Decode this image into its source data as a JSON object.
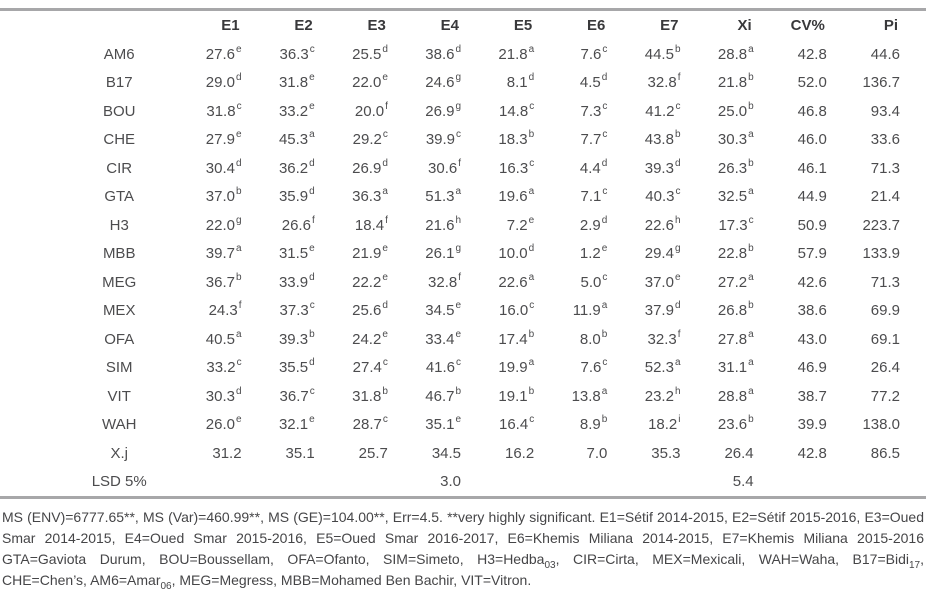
{
  "table": {
    "columns": [
      "",
      "E1",
      "E2",
      "E3",
      "E4",
      "E5",
      "E6",
      "E7",
      "Xi",
      "CV%",
      "Pi"
    ],
    "rows": [
      {
        "label": "AM6",
        "cells": [
          {
            "v": "27.6",
            "s": "e"
          },
          {
            "v": "36.3",
            "s": "c"
          },
          {
            "v": "25.5",
            "s": "d"
          },
          {
            "v": "38.6",
            "s": "d"
          },
          {
            "v": "21.8",
            "s": "a"
          },
          {
            "v": "7.6",
            "s": "c"
          },
          {
            "v": "44.5",
            "s": "b"
          },
          {
            "v": "28.8",
            "s": "a"
          },
          {
            "v": "42.8"
          },
          {
            "v": "44.6"
          }
        ]
      },
      {
        "label": "B17",
        "cells": [
          {
            "v": "29.0",
            "s": "d"
          },
          {
            "v": "31.8",
            "s": "e"
          },
          {
            "v": "22.0",
            "s": "e"
          },
          {
            "v": "24.6",
            "s": "g"
          },
          {
            "v": "8.1",
            "s": "d"
          },
          {
            "v": "4.5",
            "s": "d"
          },
          {
            "v": "32.8",
            "s": "f"
          },
          {
            "v": "21.8",
            "s": "b"
          },
          {
            "v": "52.0"
          },
          {
            "v": "136.7"
          }
        ]
      },
      {
        "label": "BOU",
        "cells": [
          {
            "v": "31.8",
            "s": "c"
          },
          {
            "v": "33.2",
            "s": "e"
          },
          {
            "v": "20.0",
            "s": "f"
          },
          {
            "v": "26.9",
            "s": "g"
          },
          {
            "v": "14.8",
            "s": "c"
          },
          {
            "v": "7.3",
            "s": "c"
          },
          {
            "v": "41.2",
            "s": "c"
          },
          {
            "v": "25.0",
            "s": "b"
          },
          {
            "v": "46.8"
          },
          {
            "v": "93.4"
          }
        ]
      },
      {
        "label": "CHE",
        "cells": [
          {
            "v": "27.9",
            "s": "e"
          },
          {
            "v": "45.3",
            "s": "a"
          },
          {
            "v": "29.2",
            "s": "c"
          },
          {
            "v": "39.9",
            "s": "c"
          },
          {
            "v": "18.3",
            "s": "b"
          },
          {
            "v": "7.7",
            "s": "c"
          },
          {
            "v": "43.8",
            "s": "b"
          },
          {
            "v": "30.3",
            "s": "a"
          },
          {
            "v": "46.0"
          },
          {
            "v": "33.6"
          }
        ]
      },
      {
        "label": "CIR",
        "cells": [
          {
            "v": "30.4",
            "s": "d"
          },
          {
            "v": "36.2",
            "s": "d"
          },
          {
            "v": "26.9",
            "s": "d"
          },
          {
            "v": "30.6",
            "s": "f"
          },
          {
            "v": "16.3",
            "s": "c"
          },
          {
            "v": "4.4",
            "s": "d"
          },
          {
            "v": "39.3",
            "s": "d"
          },
          {
            "v": "26.3",
            "s": "b"
          },
          {
            "v": "46.1"
          },
          {
            "v": "71.3"
          }
        ]
      },
      {
        "label": "GTA",
        "cells": [
          {
            "v": "37.0",
            "s": "b"
          },
          {
            "v": "35.9",
            "s": "d"
          },
          {
            "v": "36.3",
            "s": "a"
          },
          {
            "v": "51.3",
            "s": "a"
          },
          {
            "v": "19.6",
            "s": "a"
          },
          {
            "v": "7.1",
            "s": "c"
          },
          {
            "v": "40.3",
            "s": "c"
          },
          {
            "v": "32.5",
            "s": "a"
          },
          {
            "v": "44.9"
          },
          {
            "v": "21.4"
          }
        ]
      },
      {
        "label": "H3",
        "cells": [
          {
            "v": "22.0",
            "s": "g"
          },
          {
            "v": "26.6",
            "s": "f"
          },
          {
            "v": "18.4",
            "s": "f"
          },
          {
            "v": "21.6",
            "s": "h"
          },
          {
            "v": "7.2",
            "s": "e"
          },
          {
            "v": "2.9",
            "s": "d"
          },
          {
            "v": "22.6",
            "s": "h"
          },
          {
            "v": "17.3",
            "s": "c"
          },
          {
            "v": "50.9"
          },
          {
            "v": "223.7"
          }
        ]
      },
      {
        "label": "MBB",
        "cells": [
          {
            "v": "39.7",
            "s": "a"
          },
          {
            "v": "31.5",
            "s": "e"
          },
          {
            "v": "21.9",
            "s": "e"
          },
          {
            "v": "26.1",
            "s": "g"
          },
          {
            "v": "10.0",
            "s": "d"
          },
          {
            "v": "1.2",
            "s": "e"
          },
          {
            "v": "29.4",
            "s": "g"
          },
          {
            "v": "22.8",
            "s": "b"
          },
          {
            "v": "57.9"
          },
          {
            "v": "133.9"
          }
        ]
      },
      {
        "label": "MEG",
        "cells": [
          {
            "v": "36.7",
            "s": "b"
          },
          {
            "v": "33.9",
            "s": "d"
          },
          {
            "v": "22.2",
            "s": "e"
          },
          {
            "v": "32.8",
            "s": "f"
          },
          {
            "v": "22.6",
            "s": "a"
          },
          {
            "v": "5.0",
            "s": "c"
          },
          {
            "v": "37.0",
            "s": "e"
          },
          {
            "v": "27.2",
            "s": "a"
          },
          {
            "v": "42.6"
          },
          {
            "v": "71.3"
          }
        ]
      },
      {
        "label": "MEX",
        "cells": [
          {
            "v": "24.3",
            "s": "f"
          },
          {
            "v": "37.3",
            "s": "c"
          },
          {
            "v": "25.6",
            "s": "d"
          },
          {
            "v": "34.5",
            "s": "e"
          },
          {
            "v": "16.0",
            "s": "c"
          },
          {
            "v": "11.9",
            "s": "a"
          },
          {
            "v": "37.9",
            "s": "d"
          },
          {
            "v": "26.8",
            "s": "b"
          },
          {
            "v": "38.6"
          },
          {
            "v": "69.9"
          }
        ]
      },
      {
        "label": "OFA",
        "cells": [
          {
            "v": "40.5",
            "s": "a"
          },
          {
            "v": "39.3",
            "s": "b"
          },
          {
            "v": "24.2",
            "s": "e"
          },
          {
            "v": "33.4",
            "s": "e"
          },
          {
            "v": "17.4",
            "s": "b"
          },
          {
            "v": "8.0",
            "s": "b"
          },
          {
            "v": "32.3",
            "s": "f"
          },
          {
            "v": "27.8",
            "s": "a"
          },
          {
            "v": "43.0"
          },
          {
            "v": "69.1"
          }
        ]
      },
      {
        "label": "SIM",
        "cells": [
          {
            "v": "33.2",
            "s": "c"
          },
          {
            "v": "35.5",
            "s": "d"
          },
          {
            "v": "27.4",
            "s": "c"
          },
          {
            "v": "41.6",
            "s": "c"
          },
          {
            "v": "19.9",
            "s": "a"
          },
          {
            "v": "7.6",
            "s": "c"
          },
          {
            "v": "52.3",
            "s": "a"
          },
          {
            "v": "31.1",
            "s": "a"
          },
          {
            "v": "46.9"
          },
          {
            "v": "26.4"
          }
        ]
      },
      {
        "label": "VIT",
        "cells": [
          {
            "v": "30.3",
            "s": "d"
          },
          {
            "v": "36.7",
            "s": "c"
          },
          {
            "v": "31.8",
            "s": "b"
          },
          {
            "v": "46.7",
            "s": "b"
          },
          {
            "v": "19.1",
            "s": "b"
          },
          {
            "v": "13.8",
            "s": "a"
          },
          {
            "v": "23.2",
            "s": "h"
          },
          {
            "v": "28.8",
            "s": "a"
          },
          {
            "v": "38.7"
          },
          {
            "v": "77.2"
          }
        ]
      },
      {
        "label": "WAH",
        "cells": [
          {
            "v": "26.0",
            "s": "e"
          },
          {
            "v": "32.1",
            "s": "e"
          },
          {
            "v": "28.7",
            "s": "c"
          },
          {
            "v": "35.1",
            "s": "e"
          },
          {
            "v": "16.4",
            "s": "c"
          },
          {
            "v": "8.9",
            "s": "b"
          },
          {
            "v": "18.2",
            "s": "i"
          },
          {
            "v": "23.6",
            "s": "b"
          },
          {
            "v": "39.9"
          },
          {
            "v": "138.0"
          }
        ]
      },
      {
        "label": "X.j",
        "cells": [
          {
            "v": "31.2"
          },
          {
            "v": "35.1"
          },
          {
            "v": "25.7"
          },
          {
            "v": "34.5"
          },
          {
            "v": "16.2"
          },
          {
            "v": "7.0"
          },
          {
            "v": "35.3"
          },
          {
            "v": "26.4"
          },
          {
            "v": "42.8"
          },
          {
            "v": "86.5"
          }
        ]
      },
      {
        "label": "LSD 5%",
        "cells": [
          {
            "v": ""
          },
          {
            "v": ""
          },
          {
            "v": ""
          },
          {
            "v": "3.0"
          },
          {
            "v": ""
          },
          {
            "v": ""
          },
          {
            "v": ""
          },
          {
            "v": "5.4"
          },
          {
            "v": ""
          },
          {
            "v": ""
          }
        ]
      }
    ]
  },
  "footnote": {
    "tokens": [
      {
        "t": "MS (ENV)=6777.65**, MS (Var)=460.99**, MS (GE)=104.00**, Err=4.5. **very highly significant. E1=Sétif 2014-2015, E2=Sétif 2015-2016, E3=Oued Smar 2014-2015, E4=Oued Smar 2015-2016, E5=Oued Smar 2016-2017, E6=Khemis Miliana 2014-2015, E7=Khemis Miliana 2015-2016 GTA=Gaviota Durum, BOU=Boussellam, OFA=Ofanto, SIM=Simeto, H3=Hedba"
      },
      {
        "t": "03",
        "sub": true
      },
      {
        "t": ", CIR=Cirta, MEX=Mexicali, WAH=Waha, B17=Bidi"
      },
      {
        "t": "17",
        "sub": true
      },
      {
        "t": ", CHE=Chen’s, AM6=Amar"
      },
      {
        "t": "06",
        "sub": true
      },
      {
        "t": ", MEG=Megress, MBB=Mohamed Ben Bachir, VIT=Vitron."
      }
    ]
  }
}
